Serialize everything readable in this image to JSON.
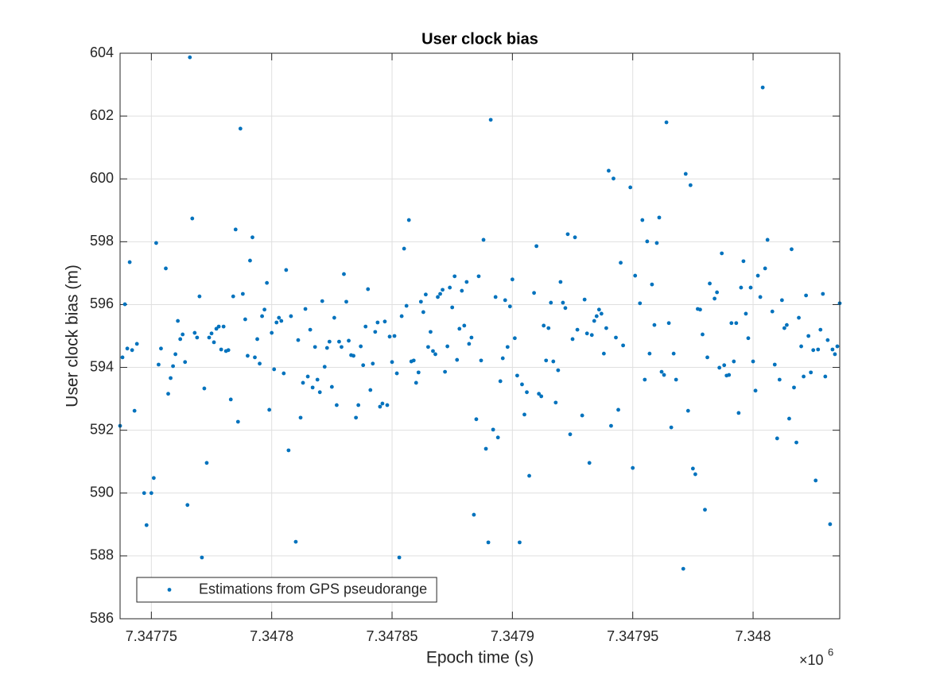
{
  "chart_data": {
    "type": "scatter",
    "title": "User clock bias",
    "x_label": "Epoch time (s)",
    "y_label": "User clock bias (m)",
    "x_exponent": {
      "base": "×10",
      "power": "6"
    },
    "xlim": [
      7347737,
      7348036
    ],
    "ylim": [
      586,
      604
    ],
    "xticks": [
      {
        "value": 7347750,
        "label": "7.34775"
      },
      {
        "value": 7347800,
        "label": "7.3478"
      },
      {
        "value": 7347850,
        "label": "7.34785"
      },
      {
        "value": 7347900,
        "label": "7.3479"
      },
      {
        "value": 7347950,
        "label": "7.34795"
      },
      {
        "value": 7348000,
        "label": "7.348"
      }
    ],
    "yticks": [
      586,
      588,
      590,
      592,
      594,
      596,
      598,
      600,
      602,
      604
    ],
    "grid": true,
    "legend": "southwest",
    "x": [
      7347737,
      7347738,
      7347739,
      7347740,
      7347741,
      7347742,
      7347743,
      7347744,
      7347747,
      7347748,
      7347750,
      7347751,
      7347752,
      7347753,
      7347754,
      7347756,
      7347757,
      7347758,
      7347759,
      7347760,
      7347761,
      7347762,
      7347763,
      7347764,
      7347765,
      7347766,
      7347767,
      7347768,
      7347769,
      7347770,
      7347771,
      7347772,
      7347773,
      7347774,
      7347775,
      7347776,
      7347777,
      7347778,
      7347779,
      7347780,
      7347781,
      7347782,
      7347783,
      7347784,
      7347785,
      7347786,
      7347787,
      7347788,
      7347789,
      7347790,
      7347791,
      7347792,
      7347793,
      7347794,
      7347795,
      7347796,
      7347797,
      7347798,
      7347799,
      7347800,
      7347801,
      7347802,
      7347803,
      7347804,
      7347805,
      7347806,
      7347807,
      7347808,
      7347810,
      7347811,
      7347812,
      7347813,
      7347814,
      7347815,
      7347816,
      7347817,
      7347818,
      7347819,
      7347820,
      7347821,
      7347822,
      7347823,
      7347824,
      7347825,
      7347826,
      7347827,
      7347828,
      7347829,
      7347830,
      7347831,
      7347832,
      7347833,
      7347834,
      7347835,
      7347836,
      7347837,
      7347838,
      7347839,
      7347840,
      7347841,
      7347842,
      7347843,
      7347844,
      7347845,
      7347846,
      7347847,
      7347848,
      7347849,
      7347850,
      7347851,
      7347852,
      7347853,
      7347854,
      7347855,
      7347856,
      7347857,
      7347858,
      7347859,
      7347860,
      7347861,
      7347862,
      7347863,
      7347864,
      7347865,
      7347866,
      7347867,
      7347868,
      7347869,
      7347870,
      7347871,
      7347872,
      7347873,
      7347874,
      7347875,
      7347876,
      7347877,
      7347878,
      7347879,
      7347880,
      7347881,
      7347882,
      7347883,
      7347884,
      7347885,
      7347886,
      7347887,
      7347888,
      7347889,
      7347890,
      7347891,
      7347892,
      7347893,
      7347894,
      7347895,
      7347896,
      7347897,
      7347898,
      7347899,
      7347900,
      7347901,
      7347902,
      7347903,
      7347904,
      7347905,
      7347906,
      7347907,
      7347909,
      7347910,
      7347911,
      7347912,
      7347913,
      7347914,
      7347915,
      7347916,
      7347917,
      7347918,
      7347919,
      7347920,
      7347921,
      7347922,
      7347923,
      7347924,
      7347925,
      7347926,
      7347927,
      7347929,
      7347930,
      7347931,
      7347932,
      7347933,
      7347934,
      7347935,
      7347936,
      7347937,
      7347938,
      7347939,
      7347940,
      7347941,
      7347942,
      7347943,
      7347944,
      7347945,
      7347946,
      7347949,
      7347950,
      7347951,
      7347953,
      7347954,
      7347955,
      7347956,
      7347957,
      7347958,
      7347959,
      7347960,
      7347961,
      7347962,
      7347963,
      7347964,
      7347965,
      7347966,
      7347967,
      7347968,
      7347971,
      7347972,
      7347973,
      7347974,
      7347975,
      7347976,
      7347977,
      7347978,
      7347979,
      7347980,
      7347981,
      7347982,
      7347984,
      7347985,
      7347986,
      7347987,
      7347988,
      7347989,
      7347990,
      7347991,
      7347992,
      7347993,
      7347994,
      7347995,
      7347996,
      7347997,
      7347998,
      7347999,
      7348000,
      7348001,
      7348002,
      7348003,
      7348004,
      7348005,
      7348006,
      7348008,
      7348009,
      7348010,
      7348011,
      7348012,
      7348013,
      7348014,
      7348015,
      7348016,
      7348017,
      7348018,
      7348019,
      7348020,
      7348021,
      7348022,
      7348023,
      7348024,
      7348025,
      7348026,
      7348027,
      7348028,
      7348029,
      7348030,
      7348031,
      7348032,
      7348033,
      7348034,
      7348035,
      7348036
    ],
    "series": [
      {
        "name": "Estimations from GPS pseudorange",
        "color": "#0072bd",
        "values": [
          592.14,
          594.32,
          596.01,
          594.6,
          597.35,
          594.55,
          592.62,
          594.75,
          590.0,
          588.98,
          590.0,
          590.48,
          597.96,
          594.09,
          594.6,
          597.15,
          593.16,
          593.66,
          594.04,
          594.42,
          595.48,
          594.9,
          595.05,
          594.17,
          589.62,
          603.87,
          598.74,
          595.1,
          594.95,
          596.26,
          587.95,
          593.33,
          590.96,
          594.95,
          595.08,
          594.8,
          595.23,
          595.3,
          594.57,
          595.3,
          594.52,
          594.55,
          592.98,
          596.26,
          598.39,
          592.27,
          601.6,
          596.34,
          595.53,
          594.37,
          597.4,
          598.14,
          594.32,
          594.9,
          594.12,
          595.63,
          595.84,
          596.69,
          592.65,
          595.1,
          593.94,
          595.43,
          595.58,
          595.48,
          593.81,
          597.1,
          591.36,
          595.63,
          588.45,
          594.87,
          592.4,
          593.51,
          595.86,
          593.71,
          595.2,
          593.36,
          594.65,
          593.61,
          593.21,
          596.11,
          594.02,
          594.62,
          594.82,
          593.38,
          595.58,
          592.8,
          594.82,
          594.65,
          596.97,
          596.09,
          594.85,
          594.39,
          594.37,
          592.4,
          592.8,
          594.67,
          594.07,
          595.3,
          596.49,
          593.28,
          594.12,
          595.13,
          595.43,
          592.75,
          592.85,
          595.46,
          592.8,
          594.98,
          594.17,
          595.0,
          593.81,
          587.95,
          595.63,
          597.78,
          595.96,
          598.69,
          594.19,
          594.22,
          593.51,
          593.84,
          596.09,
          595.76,
          596.32,
          594.65,
          595.13,
          594.52,
          594.42,
          596.24,
          596.34,
          596.47,
          593.86,
          594.67,
          596.54,
          595.91,
          596.9,
          594.24,
          595.23,
          596.44,
          595.33,
          596.72,
          594.75,
          594.95,
          589.31,
          592.35,
          596.9,
          594.22,
          598.06,
          591.41,
          588.43,
          601.88,
          592.02,
          596.24,
          591.77,
          593.56,
          594.29,
          596.14,
          594.65,
          595.94,
          596.8,
          594.93,
          593.74,
          588.43,
          593.46,
          592.5,
          593.21,
          590.55,
          596.37,
          597.86,
          593.16,
          593.08,
          595.33,
          594.22,
          595.25,
          596.06,
          594.19,
          592.88,
          593.91,
          596.72,
          596.06,
          595.89,
          598.24,
          591.87,
          594.9,
          598.14,
          595.2,
          592.47,
          596.16,
          595.08,
          590.96,
          595.03,
          595.48,
          595.63,
          595.84,
          595.71,
          594.44,
          595.25,
          600.26,
          592.14,
          600.01,
          594.95,
          592.65,
          597.33,
          594.7,
          599.73,
          590.8,
          596.92,
          596.04,
          598.69,
          593.61,
          598.01,
          594.44,
          596.64,
          595.35,
          597.96,
          598.77,
          593.86,
          593.76,
          601.8,
          595.41,
          592.09,
          594.44,
          593.61,
          587.59,
          600.16,
          592.62,
          599.8,
          590.78,
          590.6,
          595.86,
          595.84,
          595.05,
          589.47,
          594.32,
          596.67,
          596.19,
          596.39,
          593.99,
          597.63,
          594.07,
          593.74,
          593.76,
          595.41,
          594.19,
          595.41,
          592.55,
          596.54,
          597.38,
          595.71,
          594.93,
          596.54,
          594.19,
          593.26,
          596.92,
          596.24,
          602.91,
          597.15,
          598.06,
          595.78,
          594.09,
          591.74,
          593.61,
          596.14,
          595.25,
          595.35,
          592.37,
          597.76,
          593.36,
          591.61,
          595.58,
          594.67,
          593.71,
          596.29,
          595.0,
          593.84,
          594.55,
          590.4,
          594.57,
          595.2,
          596.34,
          593.71,
          594.87,
          589.01,
          594.57,
          594.42,
          594.67,
          596.04
        ]
      }
    ]
  }
}
